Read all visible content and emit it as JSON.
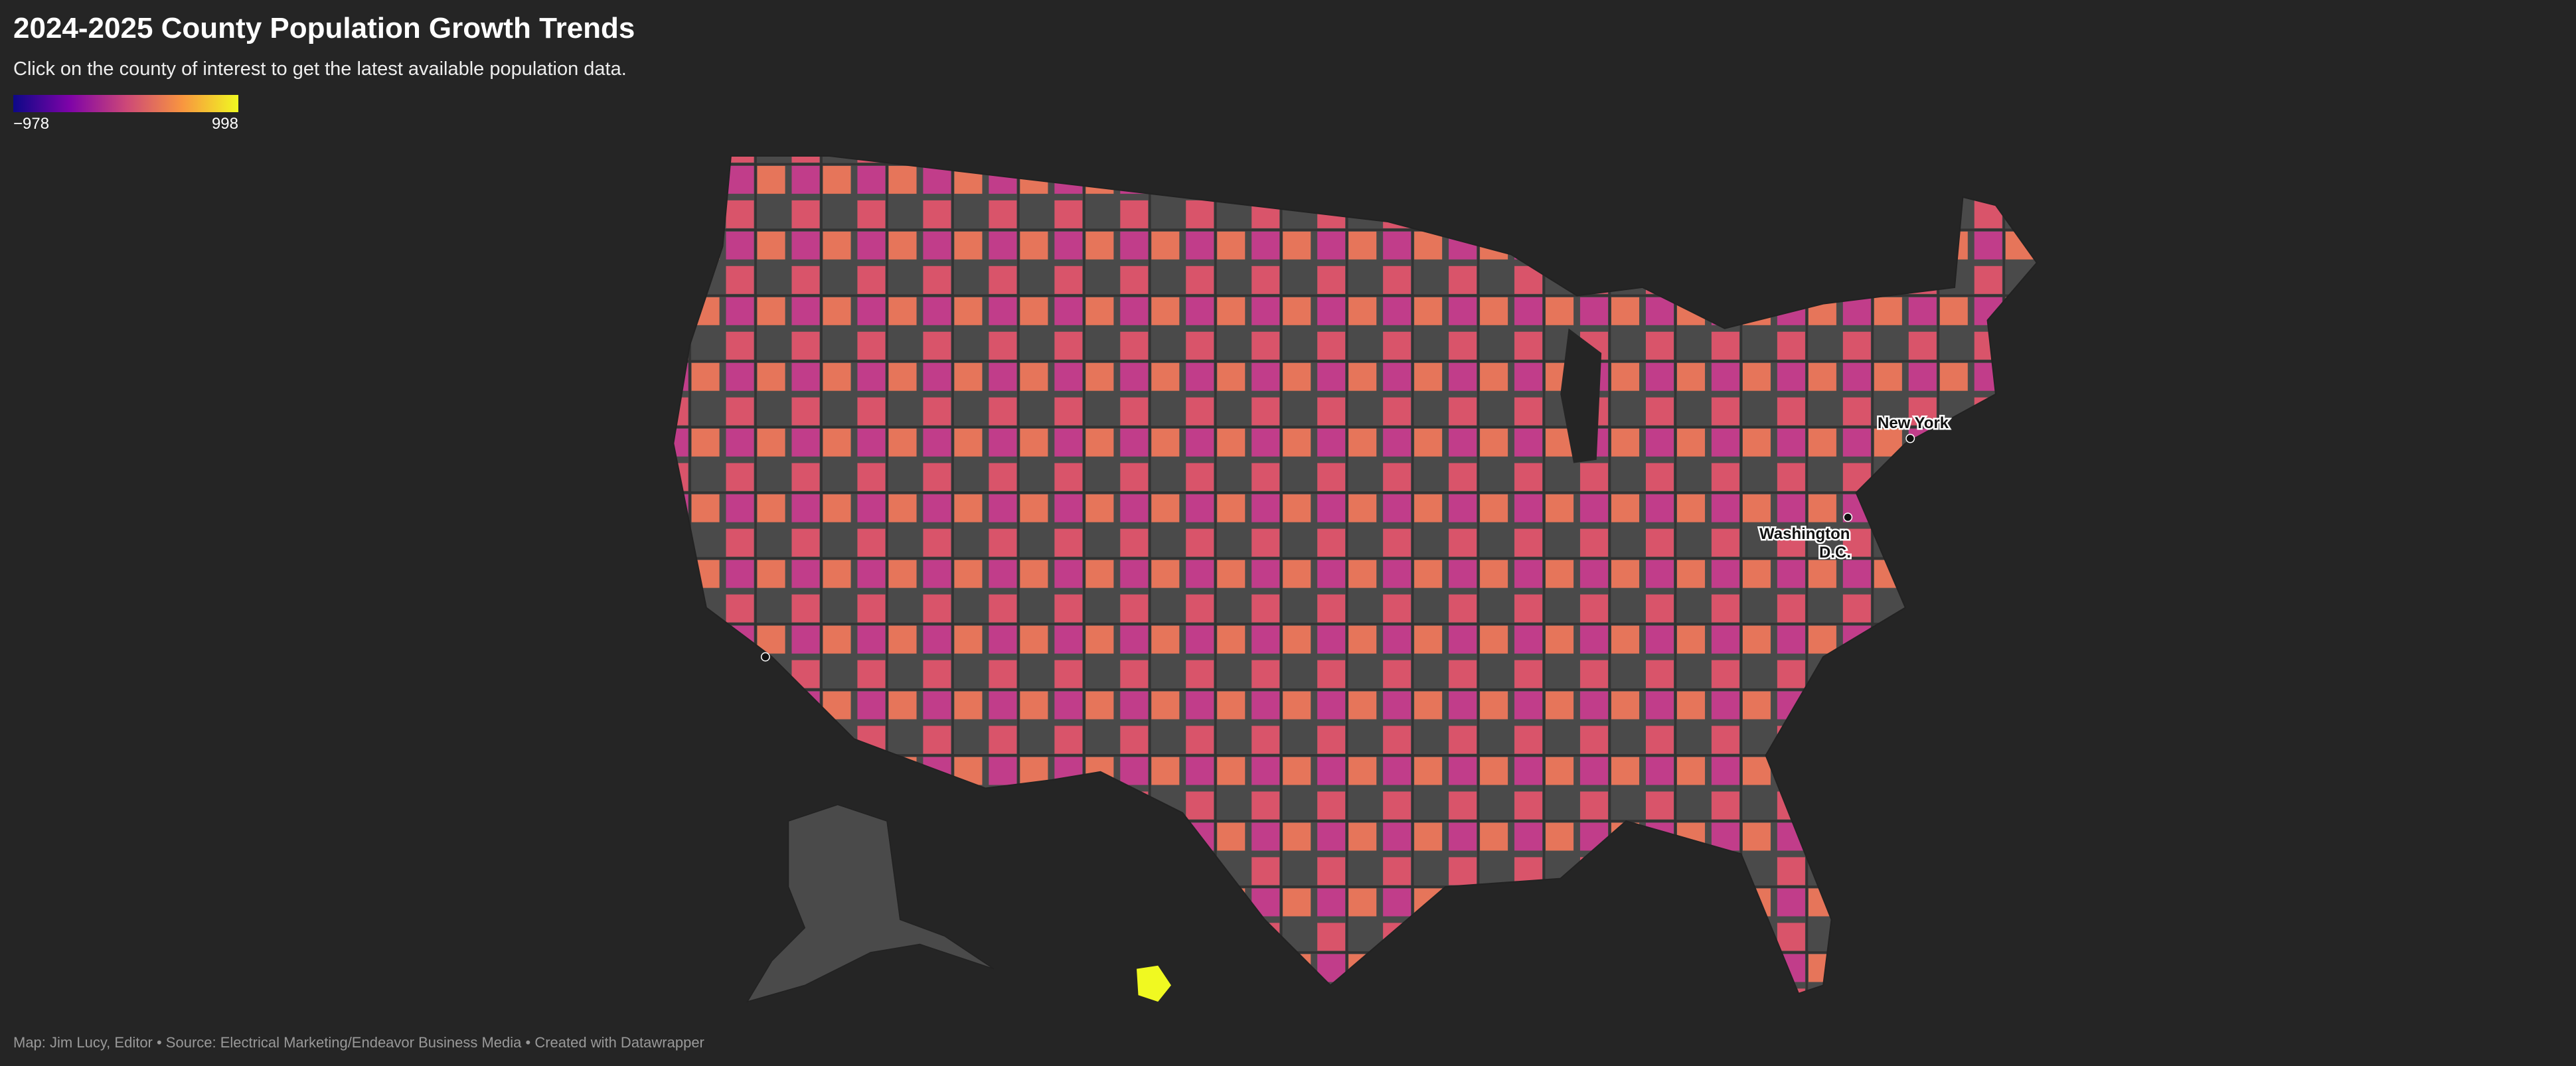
{
  "header": {
    "title": "2024-2025 County Population Growth Trends",
    "subtitle": "Click on the county of interest to get the latest available population data."
  },
  "legend": {
    "colorscale": [
      "#0d0887",
      "#7e03a8",
      "#cc4778",
      "#f89540",
      "#f0f921"
    ],
    "range": [
      -978,
      998
    ],
    "ticks": [
      {
        "value": -978,
        "label": "−978"
      },
      {
        "value": 998,
        "label": "998"
      }
    ]
  },
  "map": {
    "cities": [
      {
        "label_lines": [
          "New York"
        ]
      },
      {
        "label_lines": [
          "Washington",
          "D.C."
        ]
      }
    ]
  },
  "footer": "Map: Jim Lucy, Editor • Source: Electrical Marketing/Endeavor Business Media • Created with Datawrapper"
}
